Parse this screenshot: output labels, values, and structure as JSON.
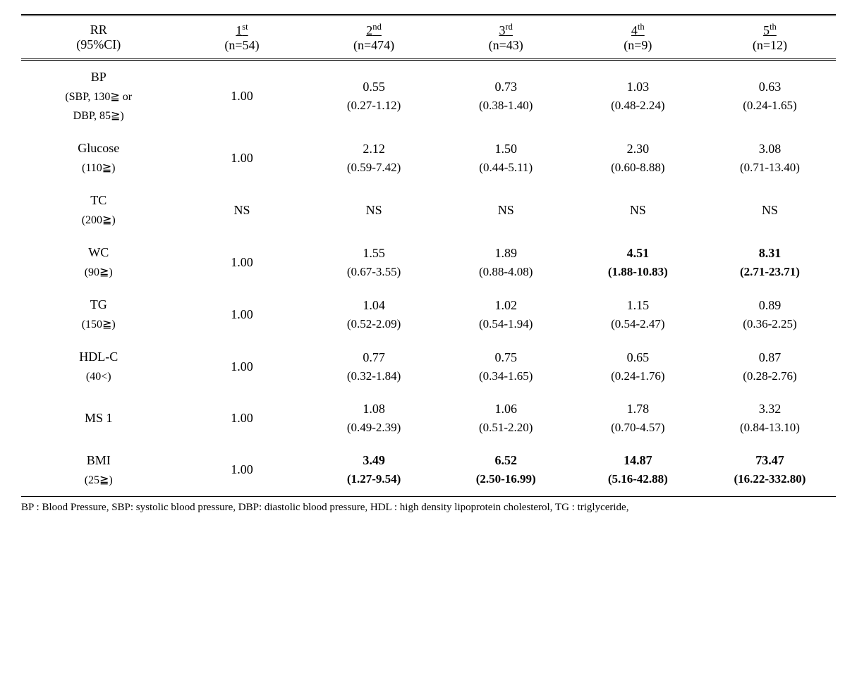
{
  "header": {
    "rr_label": "RR",
    "ci_label": "(95%CI)",
    "cols": [
      {
        "ord": "1",
        "sup": "st",
        "n": "(n=54)"
      },
      {
        "ord": "2",
        "sup": "nd",
        "n": "(n=474)"
      },
      {
        "ord": "3",
        "sup": "rd",
        "n": "(n=43)"
      },
      {
        "ord": "4",
        "sup": "th",
        "n": "(n=9)"
      },
      {
        "ord": "5",
        "sup": "th",
        "n": "(n=12)"
      }
    ]
  },
  "rows": [
    {
      "label_line1": "BP",
      "label_line2": "(SBP, 130≧ or",
      "label_line3": "DBP, 85≧)",
      "cells": [
        {
          "val": "1.00",
          "ci": "",
          "bold": false
        },
        {
          "val": "0.55",
          "ci": "(0.27-1.12)",
          "bold": false
        },
        {
          "val": "0.73",
          "ci": "(0.38-1.40)",
          "bold": false
        },
        {
          "val": "1.03",
          "ci": "(0.48-2.24)",
          "bold": false
        },
        {
          "val": "0.63",
          "ci": "(0.24-1.65)",
          "bold": false
        }
      ]
    },
    {
      "label_line1": "Glucose",
      "label_line2": "(110≧)",
      "label_line3": "",
      "cells": [
        {
          "val": "1.00",
          "ci": "",
          "bold": false
        },
        {
          "val": "2.12",
          "ci": "(0.59-7.42)",
          "bold": false
        },
        {
          "val": "1.50",
          "ci": "(0.44-5.11)",
          "bold": false
        },
        {
          "val": "2.30",
          "ci": "(0.60-8.88)",
          "bold": false
        },
        {
          "val": "3.08",
          "ci": "(0.71-13.40)",
          "bold": false
        }
      ]
    },
    {
      "label_line1": "TC",
      "label_line2": "(200≧)",
      "label_line3": "",
      "cells": [
        {
          "val": "NS",
          "ci": "",
          "bold": false
        },
        {
          "val": "NS",
          "ci": "",
          "bold": false
        },
        {
          "val": "NS",
          "ci": "",
          "bold": false
        },
        {
          "val": "NS",
          "ci": "",
          "bold": false
        },
        {
          "val": "NS",
          "ci": "",
          "bold": false
        }
      ]
    },
    {
      "label_line1": "WC",
      "label_line2": "(90≧)",
      "label_line3": "",
      "cells": [
        {
          "val": "1.00",
          "ci": "",
          "bold": false
        },
        {
          "val": "1.55",
          "ci": "(0.67-3.55)",
          "bold": false
        },
        {
          "val": "1.89",
          "ci": "(0.88-4.08)",
          "bold": false
        },
        {
          "val": "4.51",
          "ci": "(1.88-10.83)",
          "bold": true
        },
        {
          "val": "8.31",
          "ci": "(2.71-23.71)",
          "bold": true
        }
      ]
    },
    {
      "label_line1": "TG",
      "label_line2": "(150≧)",
      "label_line3": "",
      "cells": [
        {
          "val": "1.00",
          "ci": "",
          "bold": false
        },
        {
          "val": "1.04",
          "ci": "(0.52-2.09)",
          "bold": false
        },
        {
          "val": "1.02",
          "ci": "(0.54-1.94)",
          "bold": false
        },
        {
          "val": "1.15",
          "ci": "(0.54-2.47)",
          "bold": false
        },
        {
          "val": "0.89",
          "ci": "(0.36-2.25)",
          "bold": false
        }
      ]
    },
    {
      "label_line1": "HDL-C",
      "label_line2": "(40<)",
      "label_line3": "",
      "cells": [
        {
          "val": "1.00",
          "ci": "",
          "bold": false
        },
        {
          "val": "0.77",
          "ci": "(0.32-1.84)",
          "bold": false
        },
        {
          "val": "0.75",
          "ci": "(0.34-1.65)",
          "bold": false
        },
        {
          "val": "0.65",
          "ci": "(0.24-1.76)",
          "bold": false
        },
        {
          "val": "0.87",
          "ci": "(0.28-2.76)",
          "bold": false
        }
      ]
    },
    {
      "label_line1": "MS 1",
      "label_line2": "",
      "label_line3": "",
      "cells": [
        {
          "val": "1.00",
          "ci": "",
          "bold": false
        },
        {
          "val": "1.08",
          "ci": "(0.49-2.39)",
          "bold": false
        },
        {
          "val": "1.06",
          "ci": "(0.51-2.20)",
          "bold": false
        },
        {
          "val": "1.78",
          "ci": "(0.70-4.57)",
          "bold": false
        },
        {
          "val": "3.32",
          "ci": "(0.84-13.10)",
          "bold": false
        }
      ]
    },
    {
      "label_line1": "BMI",
      "label_line2": "(25≧)",
      "label_line3": "",
      "cells": [
        {
          "val": "1.00",
          "ci": "",
          "bold": false
        },
        {
          "val": "3.49",
          "ci": "(1.27-9.54)",
          "bold": true
        },
        {
          "val": "6.52",
          "ci": "(2.50-16.99)",
          "bold": true
        },
        {
          "val": "14.87",
          "ci": "(5.16-42.88)",
          "bold": true
        },
        {
          "val": "73.47",
          "ci": "(16.22-332.80)",
          "bold": true
        }
      ]
    }
  ],
  "footnote": "BP : Blood Pressure, SBP: systolic blood pressure, DBP: diastolic blood pressure, HDL : high density lipoprotein cholesterol, TG : triglyceride,"
}
